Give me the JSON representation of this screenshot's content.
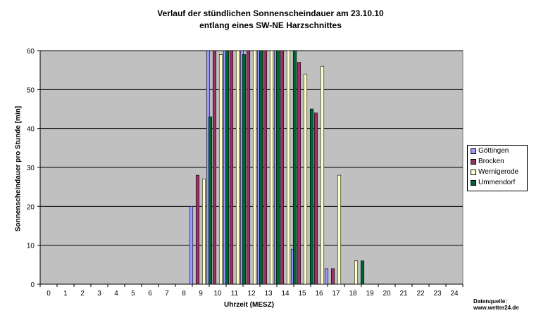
{
  "chart_data": {
    "type": "bar",
    "title": "Verlauf der stündlichen Sonnenscheindauer am 23.10.10",
    "subtitle": "entlang eines SW-NE Harzschnittes",
    "xlabel": "Uhrzeit (MESZ)",
    "ylabel": "Sonnenscheindauer pro Stunde [min]",
    "ylim": [
      0,
      60
    ],
    "yticks": [
      0,
      10,
      20,
      30,
      40,
      50,
      60
    ],
    "grid": true,
    "legend_position": "right",
    "categories": [
      "0",
      "1",
      "2",
      "3",
      "4",
      "5",
      "6",
      "7",
      "8",
      "9",
      "10",
      "11",
      "12",
      "13",
      "14",
      "15",
      "16",
      "17",
      "18",
      "19",
      "20",
      "21",
      "22",
      "23",
      "24"
    ],
    "series": [
      {
        "name": "Göttingen",
        "color": "#9999ff",
        "values": [
          0,
          0,
          0,
          0,
          0,
          0,
          0,
          0,
          0,
          20,
          60,
          60,
          60,
          60,
          60,
          9,
          0,
          4,
          0,
          0,
          0,
          0,
          0,
          0,
          0
        ]
      },
      {
        "name": "Brocken",
        "color": "#993366",
        "values": [
          0,
          0,
          0,
          0,
          0,
          0,
          0,
          0,
          0,
          28,
          60,
          60,
          60,
          60,
          60,
          57,
          44,
          4,
          0,
          0,
          0,
          0,
          0,
          0,
          0
        ]
      },
      {
        "name": "Wernigerode",
        "color": "#ffffcc",
        "values": [
          0,
          0,
          0,
          0,
          0,
          0,
          0,
          0,
          0,
          27,
          59,
          60,
          60,
          60,
          60,
          54,
          56,
          28,
          6,
          0,
          0,
          0,
          0,
          0,
          0
        ]
      },
      {
        "name": "Ummendorf",
        "color": "#006633",
        "values": [
          0,
          0,
          0,
          0,
          0,
          0,
          0,
          0,
          0,
          43,
          60,
          59,
          60,
          60,
          60,
          45,
          0,
          0,
          6,
          0,
          0,
          0,
          0,
          0,
          0
        ]
      }
    ]
  },
  "source": {
    "line1": "Datenquelle:",
    "line2": "www.wetter24.de"
  }
}
